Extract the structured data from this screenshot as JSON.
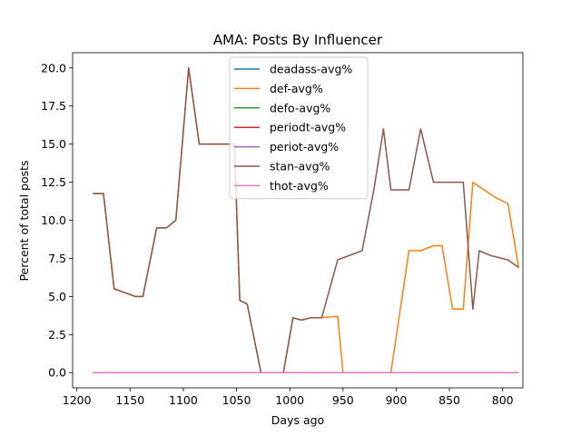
{
  "chart_data": {
    "type": "line",
    "title": "AMA: Posts By Influencer",
    "xlabel": "Days ago",
    "ylabel": "Percent of total posts",
    "xlim": [
      1204,
      781
    ],
    "ylim": [
      -1.0,
      21.0
    ],
    "x_inverted": true,
    "xticks": [
      1200,
      1150,
      1100,
      1050,
      1000,
      950,
      900,
      850,
      800
    ],
    "yticks": [
      0.0,
      2.5,
      5.0,
      7.5,
      10.0,
      12.5,
      15.0,
      17.5,
      20.0
    ],
    "xtick_labels": [
      "1200",
      "1150",
      "1100",
      "1050",
      "1000",
      "950",
      "900",
      "850",
      "800"
    ],
    "ytick_labels": [
      "0.0",
      "2.5",
      "5.0",
      "7.5",
      "10.0",
      "12.5",
      "15.0",
      "17.5",
      "20.0"
    ],
    "grid": false,
    "legend_position": "upper-center",
    "series": [
      {
        "name": "deadass-avg%",
        "color": "#1f77b4",
        "x": [
          1185,
          785
        ],
        "y": [
          0.0,
          0.0
        ]
      },
      {
        "name": "def-avg%",
        "color": "#ff7f0e",
        "x": [
          1185,
          1175,
          1165,
          1145,
          1138,
          1125,
          1116,
          1107,
          1095,
          1085,
          1052,
          1047,
          1040,
          1027,
          1006,
          997,
          989,
          980,
          970,
          955,
          950,
          943,
          905,
          888,
          877,
          865,
          857,
          847,
          837,
          828,
          807,
          795,
          785
        ],
        "y": [
          11.75,
          11.75,
          5.5,
          5.0,
          5.0,
          9.5,
          9.5,
          10.0,
          20.0,
          15.0,
          15.0,
          4.75,
          4.5,
          0.0,
          0.0,
          3.6,
          3.45,
          3.6,
          3.6,
          3.7,
          0.0,
          0.0,
          0.0,
          8.0,
          8.0,
          8.33,
          8.33,
          4.17,
          4.17,
          12.5,
          11.5,
          11.1,
          6.9
        ]
      },
      {
        "name": "defo-avg%",
        "color": "#2ca02c",
        "x": [
          1185,
          785
        ],
        "y": [
          0.0,
          0.0
        ]
      },
      {
        "name": "periodt-avg%",
        "color": "#d62728",
        "x": [
          1185,
          785
        ],
        "y": [
          0.0,
          0.0
        ]
      },
      {
        "name": "periot-avg%",
        "color": "#9467bd",
        "x": [
          1185,
          785
        ],
        "y": [
          0.0,
          0.0
        ]
      },
      {
        "name": "stan-avg%",
        "color": "#8c564b",
        "x": [
          1185,
          1175,
          1165,
          1145,
          1138,
          1125,
          1116,
          1107,
          1095,
          1085,
          1052,
          1047,
          1040,
          1027,
          1006,
          997,
          989,
          980,
          970,
          955,
          932,
          921,
          912,
          905,
          888,
          877,
          865,
          857,
          847,
          837,
          828,
          822,
          812,
          795,
          785
        ],
        "y": [
          11.75,
          11.75,
          5.5,
          5.0,
          5.0,
          9.5,
          9.5,
          10.0,
          20.0,
          15.0,
          15.0,
          4.75,
          4.5,
          0.0,
          0.0,
          3.6,
          3.45,
          3.6,
          3.6,
          7.4,
          8.0,
          12.0,
          16.0,
          12.0,
          12.0,
          16.0,
          12.5,
          12.5,
          12.5,
          12.5,
          4.17,
          8.0,
          7.7,
          7.4,
          6.9
        ]
      },
      {
        "name": "thot-avg%",
        "color": "#e377c2",
        "x": [
          1185,
          785
        ],
        "y": [
          0.0,
          0.0
        ]
      }
    ]
  }
}
